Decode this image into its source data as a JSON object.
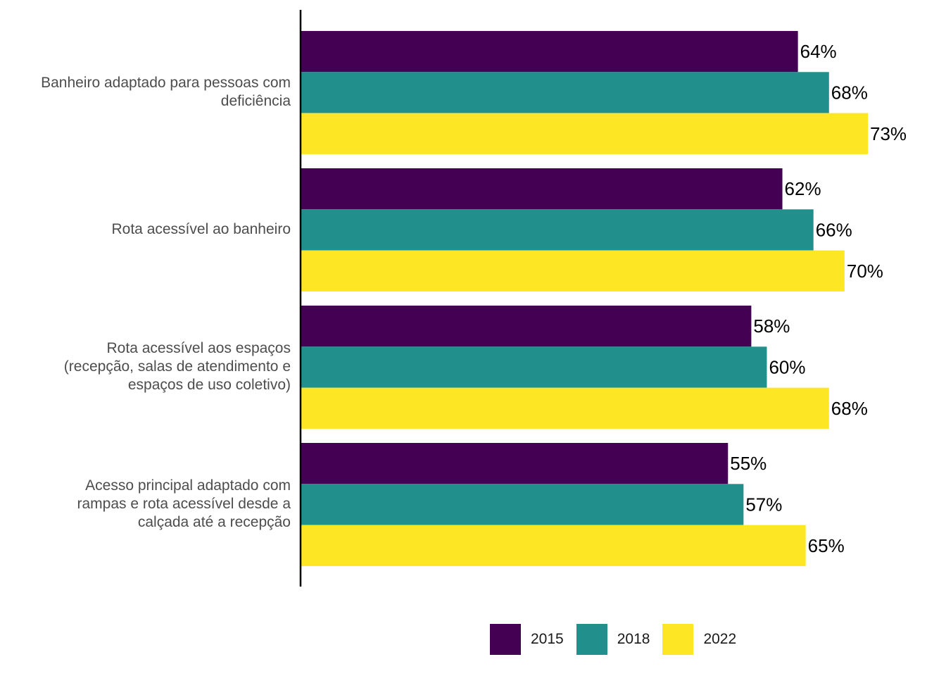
{
  "chart_data": {
    "type": "bar",
    "orientation": "horizontal",
    "categories": [
      "Banheiro adaptado para pessoas com\ndeficiência",
      "Rota acessível ao banheiro",
      "Rota acessível aos espaços\n(recepção, salas de atendimento e\nespaços de uso coletivo)",
      "Acesso principal adaptado com\nrampas e rota acessível desde a\ncalçada até a recepção"
    ],
    "series": [
      {
        "name": "2015",
        "color": "#440154",
        "values": [
          64,
          62,
          58,
          55
        ],
        "labels": [
          "64%",
          "62%",
          "58%",
          "55%"
        ]
      },
      {
        "name": "2018",
        "color": "#21908C",
        "values": [
          68,
          66,
          60,
          57
        ],
        "labels": [
          "68%",
          "66%",
          "60%",
          "57%"
        ]
      },
      {
        "name": "2022",
        "color": "#FDE725",
        "values": [
          73,
          70,
          68,
          65
        ],
        "labels": [
          "73%",
          "70%",
          "68%",
          "65%"
        ]
      }
    ],
    "value_unit": "%",
    "xlim": [
      0,
      80
    ],
    "grid": false,
    "legend_position": "bottom"
  }
}
